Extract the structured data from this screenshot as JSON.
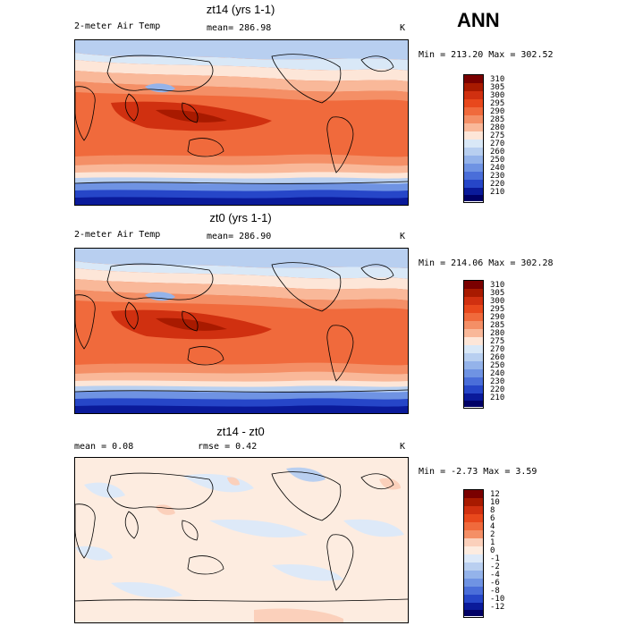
{
  "season_label": "ANN",
  "panels": [
    {
      "title": "zt14 (yrs 1-1)",
      "variable": "2-meter Air Temp",
      "mean_text": "mean= 286.98",
      "units": "K",
      "minmax": "Min = 213.20 Max = 302.52",
      "colorbar_labels": [
        "310",
        "305",
        "300",
        "295",
        "290",
        "285",
        "280",
        "275",
        "270",
        "260",
        "250",
        "240",
        "230",
        "220",
        "210"
      ]
    },
    {
      "title": "zt0 (yrs 1-1)",
      "variable": "2-meter Air Temp",
      "mean_text": "mean= 286.90",
      "units": "K",
      "minmax": "Min = 214.06 Max = 302.28",
      "colorbar_labels": [
        "310",
        "305",
        "300",
        "295",
        "290",
        "285",
        "280",
        "275",
        "270",
        "260",
        "250",
        "240",
        "230",
        "220",
        "210"
      ]
    },
    {
      "title": "zt14 - zt0",
      "mean_text": "mean =   0.08",
      "rmse_text": "rmse =   0.42",
      "units": "K",
      "minmax": "Min =  -2.73 Max =   3.59",
      "colorbar_labels": [
        "12",
        "10",
        "8",
        "6",
        "4",
        "2",
        "1",
        "0",
        "-1",
        "-2",
        "-4",
        "-6",
        "-8",
        "-10",
        "-12"
      ]
    }
  ],
  "colors": {
    "temp_scale": [
      "#7a0000",
      "#a81a00",
      "#d03010",
      "#e8481c",
      "#f06a3c",
      "#f48f66",
      "#f9b899",
      "#fde6d8",
      "#d9e8f7",
      "#b8cff0",
      "#94b3ea",
      "#6f93e3",
      "#4a6ed9",
      "#2646c8",
      "#0a1a9a",
      "#000066"
    ],
    "diff_scale": [
      "#7a0000",
      "#a81a00",
      "#d03010",
      "#e8481c",
      "#f06a3c",
      "#f48f66",
      "#fbd0bb",
      "#fdece0",
      "#dde9f8",
      "#b9cff0",
      "#94b3ea",
      "#6f93e3",
      "#4a6ed9",
      "#2646c8",
      "#0a1a9a",
      "#000066"
    ]
  }
}
